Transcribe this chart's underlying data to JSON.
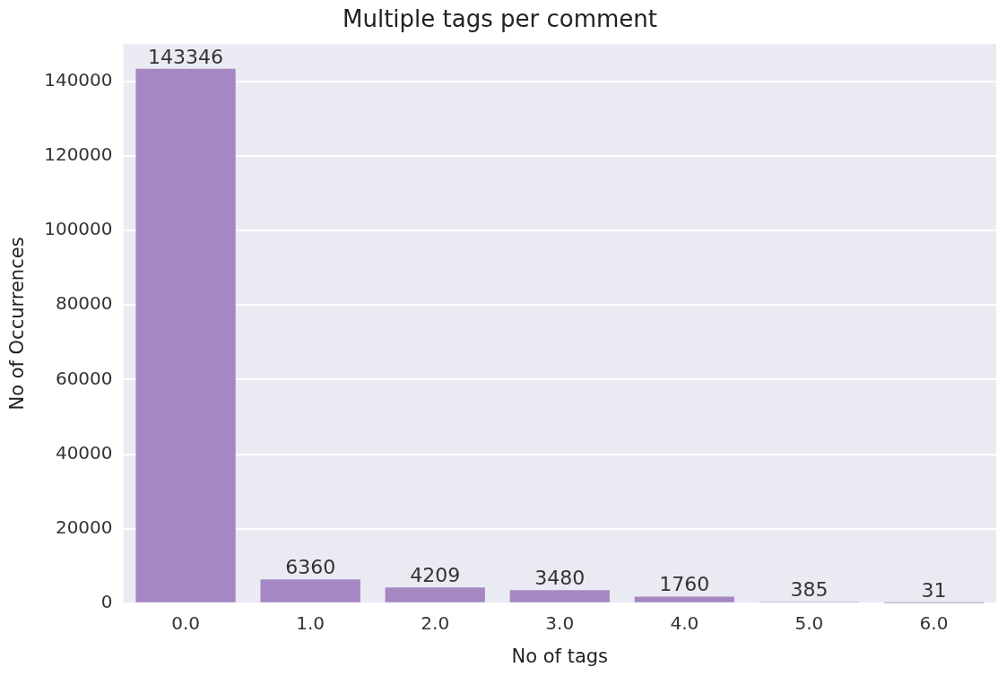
{
  "chart_data": {
    "type": "bar",
    "title": "Multiple tags per comment",
    "xlabel": "No of tags",
    "ylabel": "No of Occurrences",
    "categories": [
      "0.0",
      "1.0",
      "2.0",
      "3.0",
      "4.0",
      "5.0",
      "6.0"
    ],
    "values": [
      143346,
      6360,
      4209,
      3480,
      1760,
      385,
      31
    ],
    "color": "#a587c4",
    "ylim": [
      0,
      150000
    ],
    "yticks": [
      0,
      20000,
      40000,
      60000,
      80000,
      100000,
      120000,
      140000
    ],
    "grid": "y",
    "legend": false,
    "data_labels": true
  }
}
